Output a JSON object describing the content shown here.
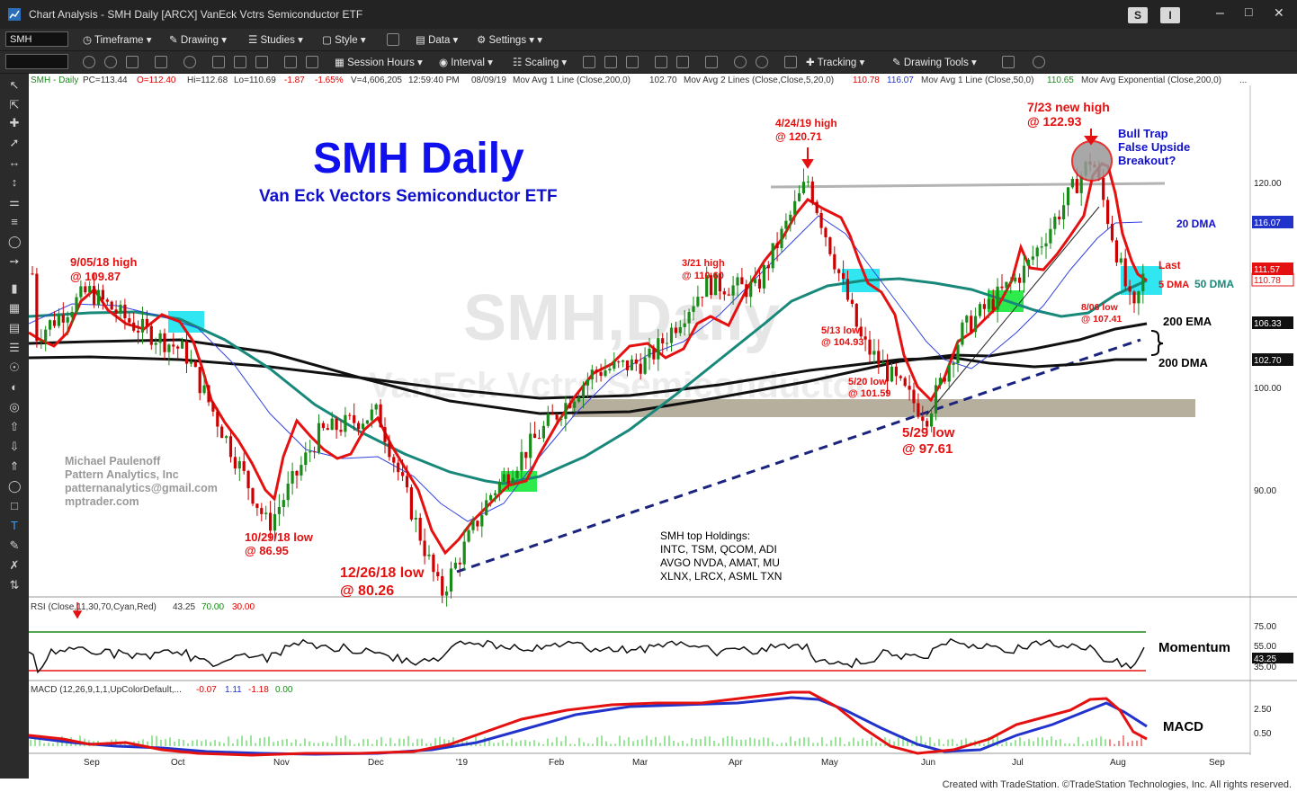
{
  "window": {
    "title": "Chart Analysis - SMH Daily [ARCX] VanEck Vctrs Semiconductor ETF",
    "s_button": "S",
    "i_button": "I"
  },
  "toolbar1": {
    "symbol": "SMH",
    "timeframe": "Timeframe",
    "drawing": "Drawing",
    "studies": "Studies",
    "style": "Style",
    "data": "Data",
    "settings": "Settings"
  },
  "toolbar2": {
    "session_hours": "Session Hours",
    "interval": "Interval",
    "scaling": "Scaling",
    "tracking": "Tracking",
    "drawing_tools": "Drawing Tools"
  },
  "status_line": {
    "symbol": "SMH - Daily",
    "pc": "PC=113.44",
    "o": "O=112.40",
    "hi": "Hi=112.68",
    "lo": "Lo=110.69",
    "chg": "-1.87",
    "pct": "-1.65%",
    "vol": "V=4,606,205",
    "time": "12:59:40 PM",
    "date": "08/09/19",
    "ma1": "Mov Avg 1 Line (Close,200,0)",
    "ma1_val": "102.70",
    "ma2": "Mov Avg 2 Lines (Close,Close,5,20,0)",
    "ma2_v1": "110.78",
    "ma2_v2": "116.07",
    "ma3": "Mov Avg 1 Line (Close,50,0)",
    "ma3_val": "110.65",
    "ma4": "Mov Avg Exponential (Close,200,0)",
    "ellipsis": "..."
  },
  "annotations": {
    "title": "SMH Daily",
    "subtitle": "Van Eck Vectors Semiconductor ETF",
    "watermark1": "SMH,Daily",
    "watermark2": "VanEck Vctrs Semiconductor",
    "author": [
      "Michael Paulenoff",
      "Pattern Analytics, Inc",
      "patternanalytics@gmail.com",
      "mptrader.com"
    ],
    "holdings": [
      "SMH top Holdings:",
      "INTC, TSM, QCOM, ADI",
      "AVGO NVDA, AMAT, MU",
      "XLNX, LRCX,  ASML  TXN"
    ],
    "labels": {
      "h0905a": "9/05/18 high",
      "h0905b": "@ 109.87",
      "l1029a": "10/29/18 low",
      "l1029b": "@ 86.95",
      "l1226a": "12/26/18 low",
      "l1226b": "@ 80.26",
      "h0321a": "3/21 high",
      "h0321b": "@ 110.60",
      "h0424a": "4/24/19 high",
      "h0424b": "@ 120.71",
      "l0513a": "5/13 low",
      "l0513b": "@ 104.93",
      "l0520a": "5/20 low",
      "l0520b": "@ 101.59",
      "l0529a": "5/29 low",
      "l0529b": "@ 97.61",
      "h0723a": "7/23 new high",
      "h0723b": "@ 122.93",
      "bull1": "Bull Trap",
      "bull2": "False Upside",
      "bull3": "Breakout?",
      "dma20": "20 DMA",
      "dma50": "50 DMA",
      "dma5": "5 DMA",
      "last": "Last",
      "l0806a": "8/06 low",
      "l0806b": "@ 107.41",
      "ema200": "200 EMA",
      "dma200": "200 DMA",
      "momentum": "Momentum",
      "macd": "MACD"
    }
  },
  "axis": {
    "price_ticks": [
      "120.00",
      "100.00",
      "90.00"
    ],
    "price_badges": {
      "ma20": "116.07",
      "last": "111.57",
      "ma5": "110.78",
      "ema": "106.33",
      "sma200": "102.70"
    },
    "months": [
      "Sep",
      "Oct",
      "Nov",
      "Dec",
      "'19",
      "Feb",
      "Mar",
      "Apr",
      "May",
      "Jun",
      "Jul",
      "Aug",
      "Sep"
    ]
  },
  "rsi": {
    "label": "RSI (Close,11,30,70,Cyan,Red)",
    "value": "43.25",
    "ob": "70.00",
    "os": "30.00",
    "ticks": [
      "75.00",
      "55.00",
      "35.00"
    ],
    "badge": "43.25"
  },
  "macd": {
    "label": "MACD (12,26,9,1,1,UpColorDefault,...",
    "v1": "-0.07",
    "v2": "1.11",
    "v3": "-1.18",
    "v4": "0.00",
    "ticks": [
      "2.50",
      "0.50"
    ]
  },
  "footer": "Created with TradeStation. ©TradeStation Technologies, Inc. All rights reserved.",
  "chart_data": {
    "type": "line",
    "title": "SMH Daily",
    "subtitle": "Van Eck Vectors Semiconductor ETF",
    "x": [
      "2018-08-20",
      "2018-09-05",
      "2018-09-20",
      "2018-10-05",
      "2018-10-29",
      "2018-11-15",
      "2018-12-03",
      "2018-12-26",
      "2019-01-15",
      "2019-02-01",
      "2019-02-20",
      "2019-03-05",
      "2019-03-21",
      "2019-04-05",
      "2019-04-24",
      "2019-05-13",
      "2019-05-20",
      "2019-05-29",
      "2019-06-15",
      "2019-07-01",
      "2019-07-23",
      "2019-08-06",
      "2019-08-09"
    ],
    "series": [
      {
        "name": "Close",
        "values": [
          105.5,
          109.87,
          106.5,
          104,
          86.95,
          96,
          98,
          80.26,
          90,
          96,
          102,
          103,
          110.6,
          110,
          120.71,
          104.93,
          101.59,
          97.61,
          106,
          112,
          122.93,
          107.41,
          111.57
        ]
      }
    ],
    "key_levels": {
      "ma20": 116.07,
      "ma5": 110.78,
      "ma50": 110.65,
      "ema200": 106.33,
      "sma200": 102.7,
      "last": 111.57
    },
    "ylim": [
      79,
      127
    ],
    "rsi": {
      "value": 43.25,
      "overbought": 70,
      "oversold": 30
    },
    "macd": {
      "values": [
        -0.07,
        1.11,
        -1.18,
        0.0
      ]
    }
  }
}
